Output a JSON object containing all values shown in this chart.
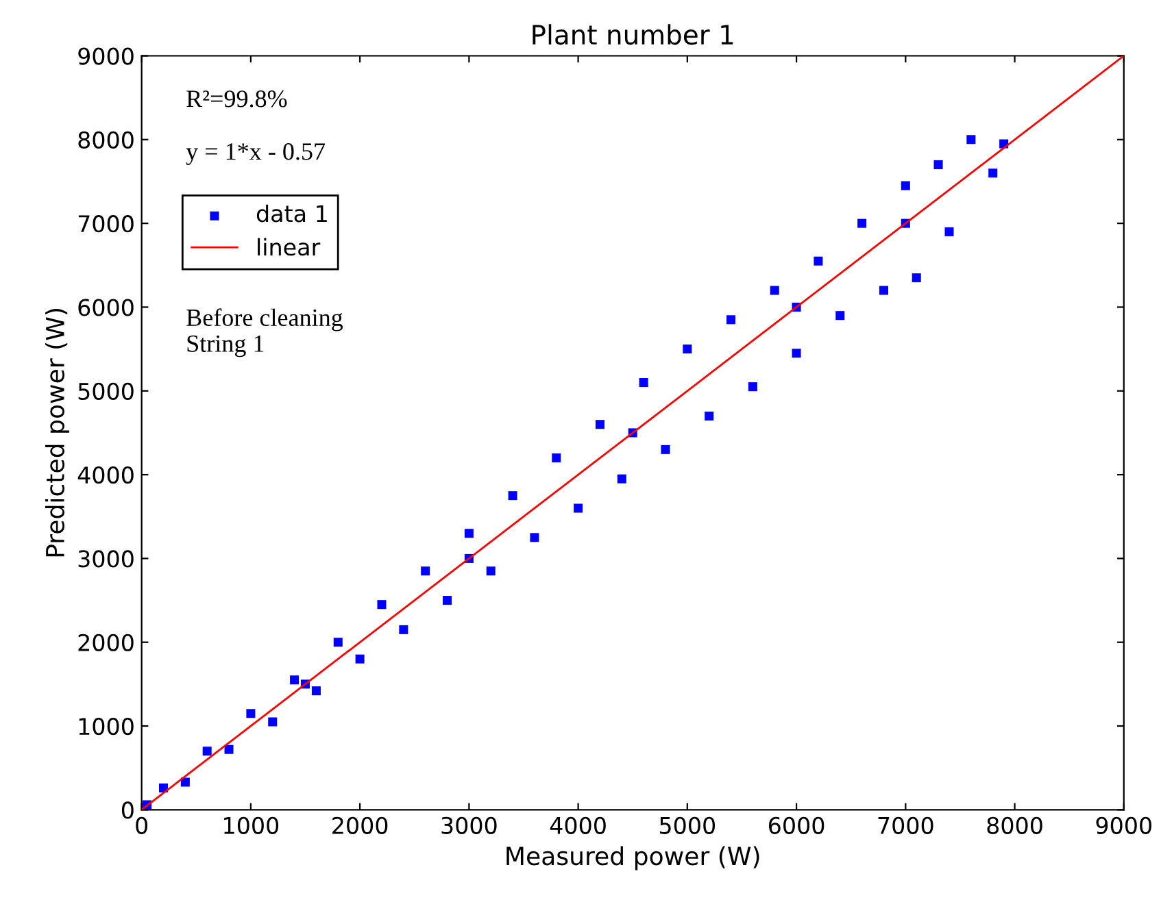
{
  "chart_data": {
    "type": "scatter",
    "title": "Plant number 1",
    "xlabel": "Measured power (W)",
    "ylabel": "Predicted power (W)",
    "xlim": [
      0,
      9000
    ],
    "ylim": [
      0,
      9000
    ],
    "xticks": [
      0,
      1000,
      2000,
      3000,
      4000,
      5000,
      6000,
      7000,
      8000,
      9000
    ],
    "yticks": [
      0,
      1000,
      2000,
      3000,
      4000,
      5000,
      6000,
      7000,
      8000,
      9000
    ],
    "grid": false,
    "legend": "top left",
    "marker": "square",
    "annotations": [
      "R²=99.8%",
      "y = 1*x - 0.57",
      "Before cleaning\nString 1"
    ],
    "series": [
      {
        "name": "data 1",
        "color": "#0000ff",
        "x": [
          50,
          200,
          400,
          600,
          800,
          1000,
          1200,
          1400,
          1600,
          1800,
          2000,
          2200,
          2400,
          2600,
          2800,
          3000,
          3200,
          3400,
          3600,
          3800,
          4000,
          4200,
          4400,
          4600,
          4800,
          5000,
          5200,
          5400,
          5600,
          5800,
          6000,
          6200,
          6400,
          6600,
          6800,
          7000,
          7100,
          7300,
          7400,
          7600,
          7800,
          7900,
          1500,
          3000,
          4500,
          6000,
          7000
        ],
        "values": [
          60,
          260,
          330,
          700,
          720,
          1150,
          1050,
          1550,
          1420,
          2000,
          1800,
          2450,
          2150,
          2850,
          2500,
          3300,
          2850,
          3750,
          3250,
          4200,
          3600,
          4600,
          3950,
          5100,
          4300,
          5500,
          4700,
          5850,
          5050,
          6200,
          5450,
          6550,
          5900,
          7000,
          6200,
          7450,
          6350,
          7700,
          6900,
          8000,
          7600,
          7950,
          1500,
          3000,
          4500,
          6000,
          7000
        ]
      },
      {
        "name": "linear",
        "type": "line",
        "color": "#ff0000",
        "marker": "none",
        "line_style": "solid",
        "x": [
          0,
          9000
        ],
        "values": [
          0,
          9000
        ]
      }
    ]
  }
}
